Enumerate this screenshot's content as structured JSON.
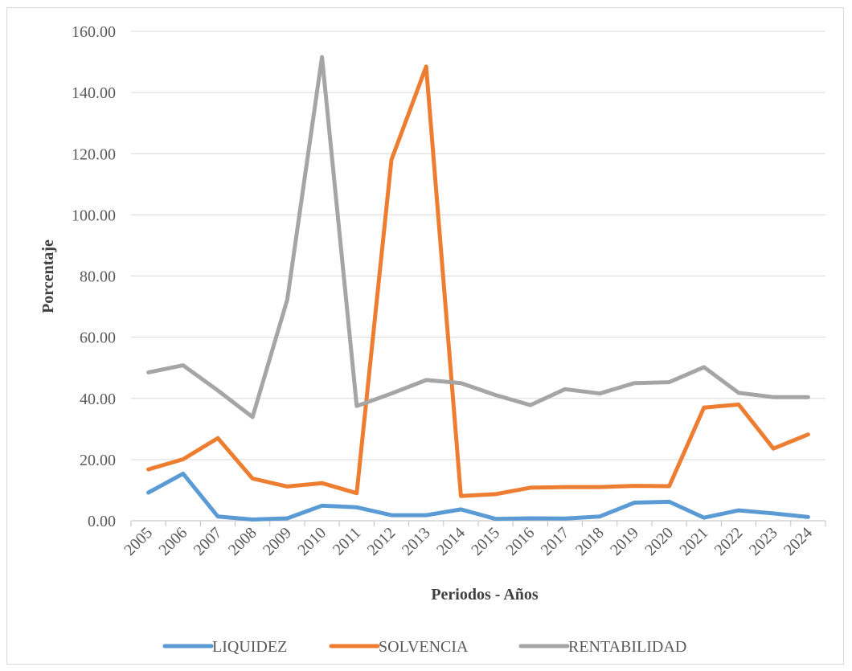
{
  "chart_data": {
    "type": "line",
    "title": "",
    "xlabel": "Periodos - Años",
    "ylabel": "Porcentaje",
    "categories": [
      "2005",
      "2006",
      "2007",
      "2008",
      "2009",
      "2010",
      "2011",
      "2012",
      "2013",
      "2014",
      "2015",
      "2016",
      "2017",
      "2018",
      "2019",
      "2020",
      "2021",
      "2022",
      "2023",
      "2024"
    ],
    "ylim": [
      0,
      160
    ],
    "yticks": [
      "0.00",
      "20.00",
      "40.00",
      "60.00",
      "80.00",
      "100.00",
      "120.00",
      "140.00",
      "160.00"
    ],
    "grid": true,
    "legend_position": "bottom",
    "series": [
      {
        "name": "LIQUIDEZ",
        "color": "#5b9bd5",
        "values": [
          9.2,
          15.4,
          1.4,
          0.4,
          0.8,
          4.9,
          4.4,
          1.8,
          1.8,
          3.7,
          0.6,
          0.8,
          0.7,
          1.4,
          5.9,
          6.2,
          1.0,
          3.4,
          2.4,
          1.2
        ]
      },
      {
        "name": "SOLVENCIA",
        "color": "#ed7d31",
        "values": [
          16.8,
          20.1,
          27.0,
          13.8,
          11.2,
          12.3,
          9.0,
          118.0,
          148.5,
          8.1,
          8.7,
          10.8,
          11.0,
          11.0,
          11.4,
          11.3,
          37.0,
          38.0,
          23.6,
          28.2
        ]
      },
      {
        "name": "RENTABILIDAD",
        "color": "#a5a5a5",
        "values": [
          48.5,
          50.8,
          42.6,
          33.9,
          72.3,
          151.6,
          37.5,
          41.6,
          46.0,
          45.0,
          41.1,
          37.8,
          43.0,
          41.6,
          45.0,
          45.3,
          50.2,
          41.8,
          40.4,
          40.4
        ]
      }
    ]
  }
}
